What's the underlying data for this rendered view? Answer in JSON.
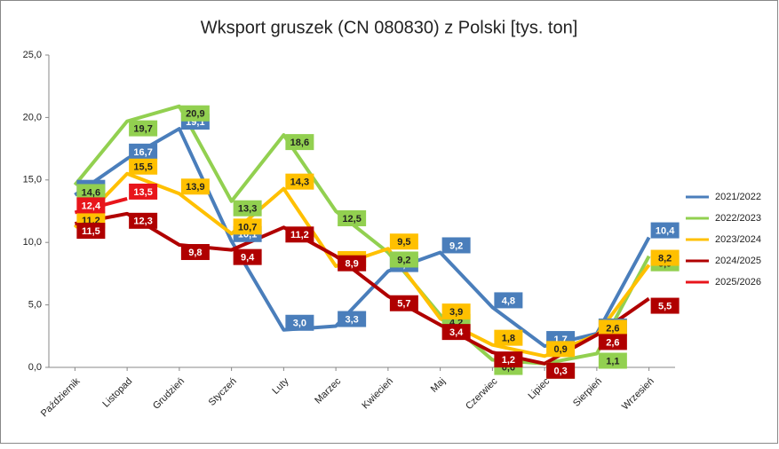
{
  "chart_data": {
    "type": "line",
    "title": "Wksport gruszek (CN 080830) z Polski [tys. ton]",
    "categories": [
      "Październik",
      "Listopad",
      "Grudzień",
      "Styczeń",
      "Luty",
      "Marzec",
      "Kwiecień",
      "Maj",
      "Czerwiec",
      "Lipiec",
      "Sierpień",
      "Wrzesień"
    ],
    "series": [
      {
        "name": "2021/2022",
        "color": "#4a7ebb",
        "values": [
          13.8,
          16.7,
          19.1,
          10.1,
          3.0,
          3.3,
          7.7,
          9.2,
          4.8,
          1.7,
          2.7,
          10.4
        ],
        "value_labels": [
          "13,8",
          "16,7",
          "19,1",
          "10,1",
          "3,0",
          "3,3",
          "7,7",
          "9,2",
          "4,8",
          "1,7",
          "2,7",
          "10,4"
        ]
      },
      {
        "name": "2022/2023",
        "color": "#92d050",
        "values": [
          14.6,
          19.7,
          20.9,
          13.3,
          18.6,
          12.5,
          9.2,
          4.2,
          0.6,
          0.3,
          1.1,
          8.9
        ],
        "value_labels": [
          "14,6",
          "19,7",
          "20,9",
          "13,3",
          "18,6",
          "12,5",
          "9,2",
          "4,2",
          "0,6",
          "0,3",
          "1,1",
          "8,9"
        ]
      },
      {
        "name": "2023/2024",
        "color": "#ffc000",
        "values": [
          11.2,
          15.5,
          13.9,
          10.7,
          14.3,
          8.1,
          9.5,
          3.9,
          1.8,
          0.9,
          2.6,
          8.2
        ],
        "value_labels": [
          "11,2",
          "15,5",
          "13,9",
          "10,7",
          "14,3",
          "8,1",
          "9,5",
          "3,9",
          "1,8",
          "0,9",
          "2,6",
          "8,2"
        ]
      },
      {
        "name": "2024/2025",
        "color": "#b00000",
        "values": [
          11.5,
          12.3,
          9.8,
          9.4,
          11.2,
          8.9,
          5.7,
          3.4,
          1.2,
          0.3,
          2.6,
          5.5
        ],
        "value_labels": [
          "11,5",
          "12,3",
          "9,8",
          "9,4",
          "11,2",
          "8,9",
          "5,7",
          "3,4",
          "1,2",
          "0,3",
          "2,6",
          "5,5"
        ]
      },
      {
        "name": "2025/2026",
        "color": "#e8151b",
        "values": [
          12.4,
          13.5,
          null,
          null,
          null,
          null,
          null,
          null,
          null,
          null,
          null,
          null
        ],
        "value_labels": [
          "12,4",
          "13,5",
          null,
          null,
          null,
          null,
          null,
          null,
          null,
          null,
          null,
          null
        ]
      }
    ],
    "ylim": [
      0,
      25
    ],
    "yticks": [
      {
        "value": 0,
        "label": "0,0"
      },
      {
        "value": 5,
        "label": "5,0"
      },
      {
        "value": 10,
        "label": "10,0"
      },
      {
        "value": 15,
        "label": "15,0"
      },
      {
        "value": 20,
        "label": "20,0"
      },
      {
        "value": 25,
        "label": "25,0"
      }
    ],
    "grid": false,
    "legend": "right"
  }
}
